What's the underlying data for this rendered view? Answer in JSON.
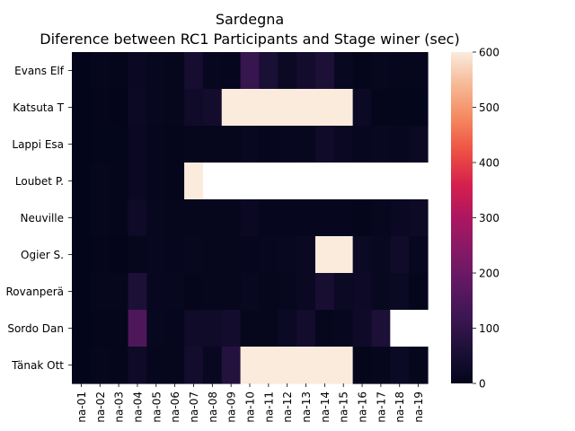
{
  "chart_data": {
    "type": "heatmap",
    "title": "Sardegna",
    "subtitle": "Diference between RC1 Participants and Stage winer (sec)",
    "xlabel": "",
    "ylabel": "",
    "x_categories": [
      "na-01",
      "na-02",
      "na-03",
      "na-04",
      "na-05",
      "na-06",
      "na-07",
      "na-08",
      "na-09",
      "na-10",
      "na-11",
      "na-12",
      "na-13",
      "na-14",
      "na-15",
      "na-16",
      "na-17",
      "na-18",
      "na-19"
    ],
    "y_categories": [
      "Evans  Elf",
      "Katsuta  T",
      "Lappi  Esa",
      "Loubet  P.",
      "Neuville",
      "Ogier  S.",
      "Rovanperä",
      "Sordo  Dan",
      "Tänak  Ott"
    ],
    "values": [
      [
        0,
        8,
        4,
        18,
        10,
        6,
        45,
        12,
        8,
        110,
        55,
        20,
        40,
        60,
        15,
        5,
        10,
        8,
        6
      ],
      [
        0,
        4,
        2,
        22,
        12,
        6,
        30,
        40,
        600,
        600,
        600,
        600,
        600,
        600,
        600,
        20,
        5,
        4,
        3
      ],
      [
        0,
        5,
        3,
        16,
        8,
        4,
        6,
        6,
        6,
        14,
        8,
        10,
        12,
        30,
        16,
        12,
        14,
        10,
        20
      ],
      [
        0,
        6,
        4,
        16,
        8,
        4,
        600,
        null,
        null,
        null,
        null,
        null,
        null,
        null,
        null,
        null,
        null,
        null,
        null
      ],
      [
        0,
        8,
        4,
        28,
        10,
        6,
        6,
        6,
        6,
        18,
        8,
        8,
        8,
        8,
        8,
        4,
        10,
        16,
        25
      ],
      [
        0,
        4,
        2,
        6,
        10,
        8,
        12,
        6,
        6,
        8,
        10,
        14,
        16,
        600,
        600,
        20,
        14,
        30,
        10
      ],
      [
        0,
        8,
        6,
        60,
        12,
        10,
        4,
        6,
        6,
        14,
        6,
        10,
        16,
        50,
        20,
        24,
        14,
        20,
        4
      ],
      [
        0,
        4,
        4,
        150,
        10,
        8,
        30,
        30,
        40,
        6,
        6,
        20,
        40,
        6,
        10,
        26,
        60,
        null,
        null
      ],
      [
        0,
        8,
        4,
        26,
        8,
        6,
        40,
        14,
        75,
        600,
        600,
        600,
        600,
        600,
        600,
        4,
        6,
        22,
        6
      ]
    ],
    "vmin": 0,
    "vmax": 600,
    "colorbar_ticks": [
      0,
      100,
      200,
      300,
      400,
      500,
      600
    ],
    "colormap": "rocket",
    "missing_color": "#ffffff"
  }
}
